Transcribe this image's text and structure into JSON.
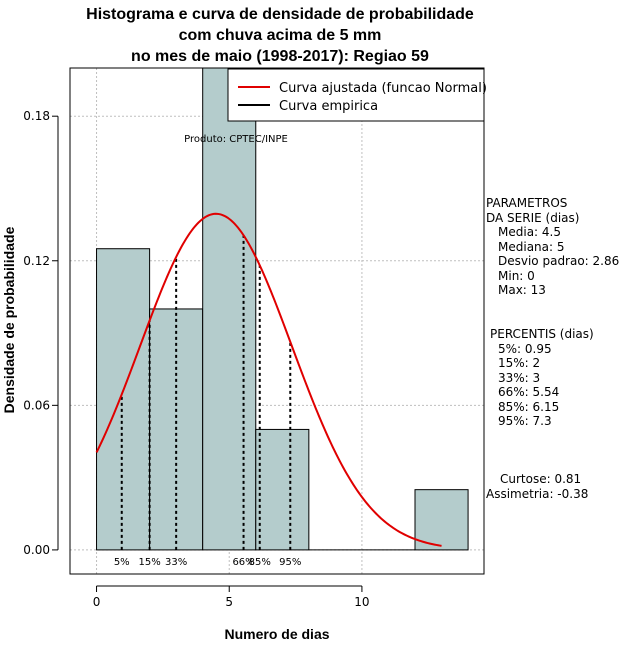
{
  "title_lines": [
    "Histograma e curva de densidade de probabilidade",
    "com chuva acima de 5 mm",
    "no mes de maio (1998-2017): Regiao 59"
  ],
  "chart_data": {
    "type": "bar",
    "subtype": "histogram_with_density_curve",
    "xlabel": "Numero de dias",
    "ylabel": "Densidade de probabilidade",
    "xlim": [
      -1,
      14.6
    ],
    "ylim": [
      -0.01,
      0.2
    ],
    "x_ticks": [
      0,
      5,
      10
    ],
    "y_ticks": [
      0.0,
      0.06,
      0.12,
      0.18
    ],
    "x_tick_labels": [
      "0",
      "5",
      "10"
    ],
    "y_tick_labels": [
      "0.00",
      "0.06",
      "0.12",
      "0.18"
    ],
    "grid": true,
    "histogram": {
      "bin_edges": [
        0,
        2,
        4,
        6,
        8,
        10,
        12,
        14
      ],
      "densities": [
        0.125,
        0.1,
        0.2,
        0.05,
        0.0,
        0.0,
        0.025
      ],
      "fill_color": "#b4cccc"
    },
    "normal_curve": {
      "mean": 4.5,
      "sd": 2.86,
      "x_start": 0,
      "x_end": 13,
      "color": "#e00000"
    },
    "percentiles": [
      {
        "label": "5%",
        "value": 0.95
      },
      {
        "label": "15%",
        "value": 2
      },
      {
        "label": "33%",
        "value": 3
      },
      {
        "label": "66%",
        "value": 5.54
      },
      {
        "label": "85%",
        "value": 6.15
      },
      {
        "label": "95%",
        "value": 7.3
      }
    ],
    "legend": {
      "placement": "top-right",
      "items": [
        {
          "label": "Curva ajustada (funcao Normal)",
          "color": "#e00000"
        },
        {
          "label": "Curva empirica",
          "color": "#000000"
        }
      ]
    },
    "annotation": "Produto: CPTEC/INPE"
  },
  "side_panel": {
    "parametros_lines": [
      "PARAMETROS",
      "DA SERIE (dias)"
    ],
    "parametros_items": [
      "Media: 4.5",
      "Mediana: 5",
      "Desvio padrao: 2.86",
      "Min: 0",
      "Max: 13"
    ],
    "percentis_title": "PERCENTIS (dias)",
    "percentis_items": [
      "5%: 0.95",
      "15%: 2",
      "33%: 3",
      "66%: 5.54",
      "85%: 6.15",
      "95%: 7.3"
    ],
    "curtose": "Curtose: 0.81",
    "assimetria": "Assimetria: -0.38"
  }
}
